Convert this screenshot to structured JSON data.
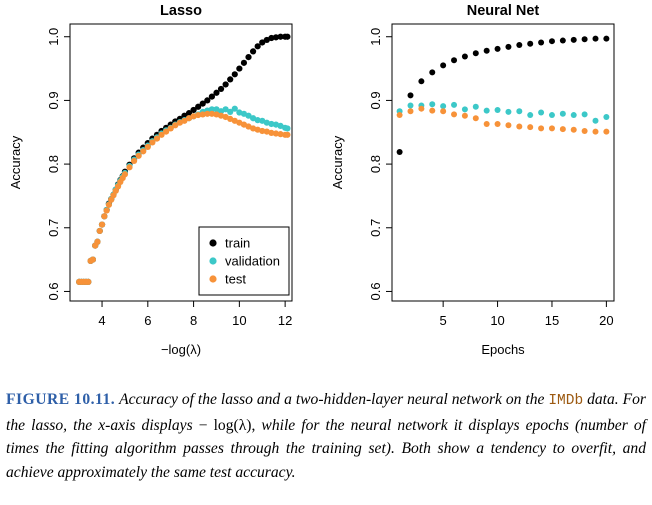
{
  "chart_data": [
    {
      "type": "scatter",
      "title": "Lasso",
      "xlabel": "−log(λ)",
      "ylabel": "Accuracy",
      "xlim": [
        2.6,
        12.3
      ],
      "ylim": [
        0.585,
        1.02
      ],
      "xticks": [
        4,
        6,
        8,
        10,
        12
      ],
      "yticks": [
        0.6,
        0.7,
        0.8,
        0.9,
        1.0
      ],
      "xtick_labels": [
        "4",
        "6",
        "8",
        "10",
        "12"
      ],
      "ytick_labels": [
        "0.6",
        "0.7",
        "0.8",
        "0.9",
        "1.0"
      ],
      "grid": false,
      "legend": {
        "placement": "bottom-right",
        "entries": [
          {
            "label": "train",
            "color": "#000000"
          },
          {
            "label": "validation",
            "color": "#3cc8c8"
          },
          {
            "label": "test",
            "color": "#f79239"
          }
        ]
      },
      "series": [
        {
          "name": "train",
          "color": "#000000",
          "points": [
            [
              3.0,
              0.615
            ],
            [
              3.1,
              0.615
            ],
            [
              3.2,
              0.615
            ],
            [
              3.3,
              0.615
            ],
            [
              3.4,
              0.615
            ],
            [
              3.5,
              0.648
            ],
            [
              3.6,
              0.65
            ],
            [
              3.7,
              0.672
            ],
            [
              3.8,
              0.678
            ],
            [
              3.9,
              0.695
            ],
            [
              4.0,
              0.705
            ],
            [
              4.1,
              0.718
            ],
            [
              4.2,
              0.728
            ],
            [
              4.3,
              0.738
            ],
            [
              4.4,
              0.745
            ],
            [
              4.5,
              0.752
            ],
            [
              4.6,
              0.76
            ],
            [
              4.7,
              0.768
            ],
            [
              4.8,
              0.775
            ],
            [
              4.9,
              0.781
            ],
            [
              5.0,
              0.788
            ],
            [
              5.2,
              0.799
            ],
            [
              5.4,
              0.809
            ],
            [
              5.6,
              0.818
            ],
            [
              5.8,
              0.826
            ],
            [
              6.0,
              0.833
            ],
            [
              6.2,
              0.84
            ],
            [
              6.4,
              0.846
            ],
            [
              6.6,
              0.852
            ],
            [
              6.8,
              0.857
            ],
            [
              7.0,
              0.862
            ],
            [
              7.2,
              0.867
            ],
            [
              7.4,
              0.871
            ],
            [
              7.6,
              0.876
            ],
            [
              7.8,
              0.88
            ],
            [
              8.0,
              0.885
            ],
            [
              8.2,
              0.89
            ],
            [
              8.4,
              0.895
            ],
            [
              8.6,
              0.9
            ],
            [
              8.8,
              0.906
            ],
            [
              9.0,
              0.912
            ],
            [
              9.2,
              0.918
            ],
            [
              9.4,
              0.925
            ],
            [
              9.6,
              0.933
            ],
            [
              9.8,
              0.941
            ],
            [
              10.0,
              0.95
            ],
            [
              10.2,
              0.959
            ],
            [
              10.4,
              0.968
            ],
            [
              10.6,
              0.977
            ],
            [
              10.8,
              0.985
            ],
            [
              11.0,
              0.991
            ],
            [
              11.2,
              0.995
            ],
            [
              11.4,
              0.998
            ],
            [
              11.6,
              0.999
            ],
            [
              11.8,
              1.0
            ],
            [
              12.0,
              1.0
            ],
            [
              12.1,
              1.0
            ]
          ]
        },
        {
          "name": "validation",
          "color": "#3cc8c8",
          "points": [
            [
              3.0,
              0.615
            ],
            [
              3.1,
              0.615
            ],
            [
              3.2,
              0.615
            ],
            [
              3.3,
              0.615
            ],
            [
              3.4,
              0.615
            ],
            [
              3.5,
              0.648
            ],
            [
              3.6,
              0.65
            ],
            [
              3.7,
              0.672
            ],
            [
              3.8,
              0.678
            ],
            [
              3.9,
              0.695
            ],
            [
              4.0,
              0.705
            ],
            [
              4.1,
              0.718
            ],
            [
              4.2,
              0.728
            ],
            [
              4.3,
              0.737
            ],
            [
              4.4,
              0.745
            ],
            [
              4.5,
              0.752
            ],
            [
              4.6,
              0.76
            ],
            [
              4.7,
              0.767
            ],
            [
              4.8,
              0.774
            ],
            [
              4.9,
              0.78
            ],
            [
              5.0,
              0.786
            ],
            [
              5.2,
              0.797
            ],
            [
              5.4,
              0.807
            ],
            [
              5.6,
              0.815
            ],
            [
              5.8,
              0.822
            ],
            [
              6.0,
              0.829
            ],
            [
              6.2,
              0.836
            ],
            [
              6.4,
              0.842
            ],
            [
              6.6,
              0.848
            ],
            [
              6.8,
              0.853
            ],
            [
              7.0,
              0.857
            ],
            [
              7.2,
              0.862
            ],
            [
              7.4,
              0.866
            ],
            [
              7.6,
              0.869
            ],
            [
              7.8,
              0.872
            ],
            [
              8.0,
              0.875
            ],
            [
              8.2,
              0.878
            ],
            [
              8.4,
              0.882
            ],
            [
              8.6,
              0.884
            ],
            [
              8.8,
              0.886
            ],
            [
              9.0,
              0.886
            ],
            [
              9.2,
              0.883
            ],
            [
              9.4,
              0.886
            ],
            [
              9.6,
              0.882
            ],
            [
              9.8,
              0.887
            ],
            [
              10.0,
              0.881
            ],
            [
              10.2,
              0.879
            ],
            [
              10.4,
              0.876
            ],
            [
              10.6,
              0.872
            ],
            [
              10.8,
              0.869
            ],
            [
              11.0,
              0.868
            ],
            [
              11.2,
              0.865
            ],
            [
              11.4,
              0.863
            ],
            [
              11.6,
              0.862
            ],
            [
              11.8,
              0.86
            ],
            [
              12.0,
              0.857
            ],
            [
              12.1,
              0.856
            ]
          ]
        },
        {
          "name": "test",
          "color": "#f79239",
          "points": [
            [
              3.0,
              0.615
            ],
            [
              3.1,
              0.615
            ],
            [
              3.2,
              0.615
            ],
            [
              3.3,
              0.615
            ],
            [
              3.4,
              0.615
            ],
            [
              3.5,
              0.648
            ],
            [
              3.6,
              0.65
            ],
            [
              3.7,
              0.672
            ],
            [
              3.8,
              0.678
            ],
            [
              3.9,
              0.695
            ],
            [
              4.0,
              0.705
            ],
            [
              4.1,
              0.718
            ],
            [
              4.2,
              0.727
            ],
            [
              4.3,
              0.736
            ],
            [
              4.4,
              0.744
            ],
            [
              4.5,
              0.751
            ],
            [
              4.6,
              0.758
            ],
            [
              4.7,
              0.765
            ],
            [
              4.8,
              0.772
            ],
            [
              4.9,
              0.778
            ],
            [
              5.0,
              0.784
            ],
            [
              5.2,
              0.795
            ],
            [
              5.4,
              0.805
            ],
            [
              5.6,
              0.813
            ],
            [
              5.8,
              0.82
            ],
            [
              6.0,
              0.827
            ],
            [
              6.2,
              0.834
            ],
            [
              6.4,
              0.84
            ],
            [
              6.6,
              0.846
            ],
            [
              6.8,
              0.851
            ],
            [
              7.0,
              0.856
            ],
            [
              7.2,
              0.861
            ],
            [
              7.4,
              0.865
            ],
            [
              7.6,
              0.868
            ],
            [
              7.8,
              0.872
            ],
            [
              8.0,
              0.875
            ],
            [
              8.2,
              0.877
            ],
            [
              8.4,
              0.878
            ],
            [
              8.6,
              0.879
            ],
            [
              8.8,
              0.879
            ],
            [
              9.0,
              0.878
            ],
            [
              9.2,
              0.876
            ],
            [
              9.4,
              0.874
            ],
            [
              9.6,
              0.871
            ],
            [
              9.8,
              0.868
            ],
            [
              10.0,
              0.865
            ],
            [
              10.2,
              0.862
            ],
            [
              10.4,
              0.859
            ],
            [
              10.6,
              0.856
            ],
            [
              10.8,
              0.854
            ],
            [
              11.0,
              0.852
            ],
            [
              11.2,
              0.851
            ],
            [
              11.4,
              0.849
            ],
            [
              11.6,
              0.848
            ],
            [
              11.8,
              0.847
            ],
            [
              12.0,
              0.846
            ],
            [
              12.1,
              0.846
            ]
          ]
        }
      ]
    },
    {
      "type": "scatter",
      "title": "Neural Net",
      "xlabel": "Epochs",
      "ylabel": "Accuracy",
      "xlim": [
        0.3,
        20.7
      ],
      "ylim": [
        0.585,
        1.02
      ],
      "xticks": [
        5,
        10,
        15,
        20
      ],
      "yticks": [
        0.6,
        0.7,
        0.8,
        0.9,
        1.0
      ],
      "xtick_labels": [
        "5",
        "10",
        "15",
        "20"
      ],
      "ytick_labels": [
        "0.6",
        "0.7",
        "0.8",
        "0.9",
        "1.0"
      ],
      "grid": false,
      "series": [
        {
          "name": "train",
          "color": "#000000",
          "points": [
            [
              1,
              0.819
            ],
            [
              2,
              0.908
            ],
            [
              3,
              0.93
            ],
            [
              4,
              0.944
            ],
            [
              5,
              0.955
            ],
            [
              6,
              0.963
            ],
            [
              7,
              0.969
            ],
            [
              8,
              0.974
            ],
            [
              9,
              0.978
            ],
            [
              10,
              0.981
            ],
            [
              11,
              0.984
            ],
            [
              12,
              0.987
            ],
            [
              13,
              0.989
            ],
            [
              14,
              0.991
            ],
            [
              15,
              0.993
            ],
            [
              16,
              0.994
            ],
            [
              17,
              0.995
            ],
            [
              18,
              0.996
            ],
            [
              19,
              0.997
            ],
            [
              20,
              0.997
            ]
          ]
        },
        {
          "name": "validation",
          "color": "#3cc8c8",
          "points": [
            [
              1,
              0.883
            ],
            [
              2,
              0.892
            ],
            [
              3,
              0.892
            ],
            [
              4,
              0.894
            ],
            [
              5,
              0.891
            ],
            [
              6,
              0.893
            ],
            [
              7,
              0.886
            ],
            [
              8,
              0.89
            ],
            [
              9,
              0.884
            ],
            [
              10,
              0.885
            ],
            [
              11,
              0.882
            ],
            [
              12,
              0.883
            ],
            [
              13,
              0.877
            ],
            [
              14,
              0.881
            ],
            [
              15,
              0.877
            ],
            [
              16,
              0.879
            ],
            [
              17,
              0.877
            ],
            [
              18,
              0.878
            ],
            [
              19,
              0.868
            ],
            [
              20,
              0.874
            ]
          ]
        },
        {
          "name": "test",
          "color": "#f79239",
          "points": [
            [
              1,
              0.877
            ],
            [
              2,
              0.883
            ],
            [
              3,
              0.887
            ],
            [
              4,
              0.884
            ],
            [
              5,
              0.883
            ],
            [
              6,
              0.878
            ],
            [
              7,
              0.876
            ],
            [
              8,
              0.872
            ],
            [
              9,
              0.863
            ],
            [
              10,
              0.863
            ],
            [
              11,
              0.861
            ],
            [
              12,
              0.859
            ],
            [
              13,
              0.858
            ],
            [
              14,
              0.856
            ],
            [
              15,
              0.856
            ],
            [
              16,
              0.855
            ],
            [
              17,
              0.854
            ],
            [
              18,
              0.852
            ],
            [
              19,
              0.851
            ],
            [
              20,
              0.851
            ]
          ]
        }
      ]
    }
  ],
  "caption": {
    "label": "FIGURE 10.11.",
    "part1": "Accuracy of the lasso and a two-hidden-layer neural network on the",
    "code": "IMDb",
    "part2": "data. For the lasso, the x-axis displays",
    "math": "− log(λ),",
    "part3": "while for the neural network it displays epochs (number of times the fitting algorithm passes through the training set). Both show a tendency to overfit, and achieve approximately the same test accuracy."
  }
}
